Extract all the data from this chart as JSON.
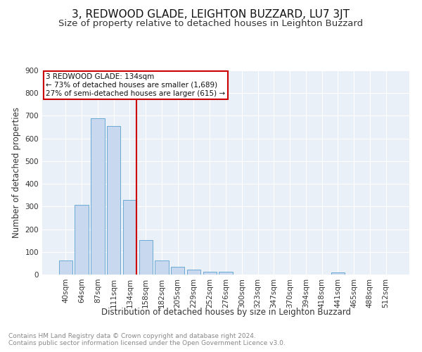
{
  "title": "3, REDWOOD GLADE, LEIGHTON BUZZARD, LU7 3JT",
  "subtitle": "Size of property relative to detached houses in Leighton Buzzard",
  "xlabel": "Distribution of detached houses by size in Leighton Buzzard",
  "ylabel": "Number of detached properties",
  "footnote1": "Contains HM Land Registry data © Crown copyright and database right 2024.",
  "footnote2": "Contains public sector information licensed under the Open Government Licence v3.0.",
  "bar_labels": [
    "40sqm",
    "64sqm",
    "87sqm",
    "111sqm",
    "134sqm",
    "158sqm",
    "182sqm",
    "205sqm",
    "229sqm",
    "252sqm",
    "276sqm",
    "300sqm",
    "323sqm",
    "347sqm",
    "370sqm",
    "394sqm",
    "418sqm",
    "441sqm",
    "465sqm",
    "488sqm",
    "512sqm"
  ],
  "bar_values": [
    62,
    307,
    688,
    654,
    330,
    152,
    63,
    33,
    22,
    12,
    12,
    0,
    0,
    0,
    0,
    0,
    0,
    10,
    0,
    0,
    0
  ],
  "bar_color": "#c8d9ef",
  "bar_edgecolor": "#6aaad4",
  "vline_color": "#cc0000",
  "annotation_text": "3 REDWOOD GLADE: 134sqm\n← 73% of detached houses are smaller (1,689)\n27% of semi-detached houses are larger (615) →",
  "annotation_box_edgecolor": "#cc0000",
  "annotation_box_facecolor": "#ffffff",
  "ylim": [
    0,
    900
  ],
  "yticks": [
    0,
    100,
    200,
    300,
    400,
    500,
    600,
    700,
    800,
    900
  ],
  "bg_color": "#eaf0f8",
  "title_fontsize": 11,
  "subtitle_fontsize": 9.5,
  "axis_label_fontsize": 8.5,
  "tick_fontsize": 7.5,
  "footnote_fontsize": 6.5
}
